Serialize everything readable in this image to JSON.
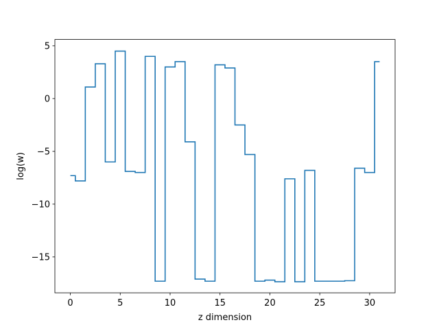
{
  "chart_data": {
    "type": "line",
    "drawstyle": "steps-mid",
    "title": "",
    "xlabel": "z dimension",
    "ylabel": "log(w)",
    "xlim": [
      -1.55,
      32.55
    ],
    "ylim": [
      -18.4,
      5.6
    ],
    "xticks": [
      0,
      5,
      10,
      15,
      20,
      25,
      30
    ],
    "yticks": [
      -15,
      -10,
      -5,
      0,
      5
    ],
    "ytick_labels": [
      "−15",
      "−10",
      "−5",
      "0",
      "5"
    ],
    "grid": false,
    "line_color": "#1f77b4",
    "series": [
      {
        "x": [
          0,
          1,
          2,
          3,
          4,
          5,
          6,
          7,
          8,
          9,
          10,
          11,
          12,
          13,
          14,
          15,
          16,
          17,
          18,
          19,
          20,
          21,
          22,
          23,
          24,
          25,
          26,
          27,
          28,
          29,
          30,
          31
        ],
        "values": [
          -7.3,
          -7.8,
          1.1,
          3.3,
          -6.0,
          4.5,
          -6.9,
          -7.0,
          4.0,
          -17.3,
          3.0,
          3.5,
          -4.1,
          -17.1,
          -17.3,
          3.2,
          2.9,
          -2.5,
          -5.3,
          -17.3,
          -17.2,
          -17.35,
          -7.6,
          -17.35,
          -6.8,
          -17.3,
          -17.3,
          -17.3,
          -17.25,
          -6.6,
          -7.0,
          3.5
        ]
      }
    ]
  }
}
